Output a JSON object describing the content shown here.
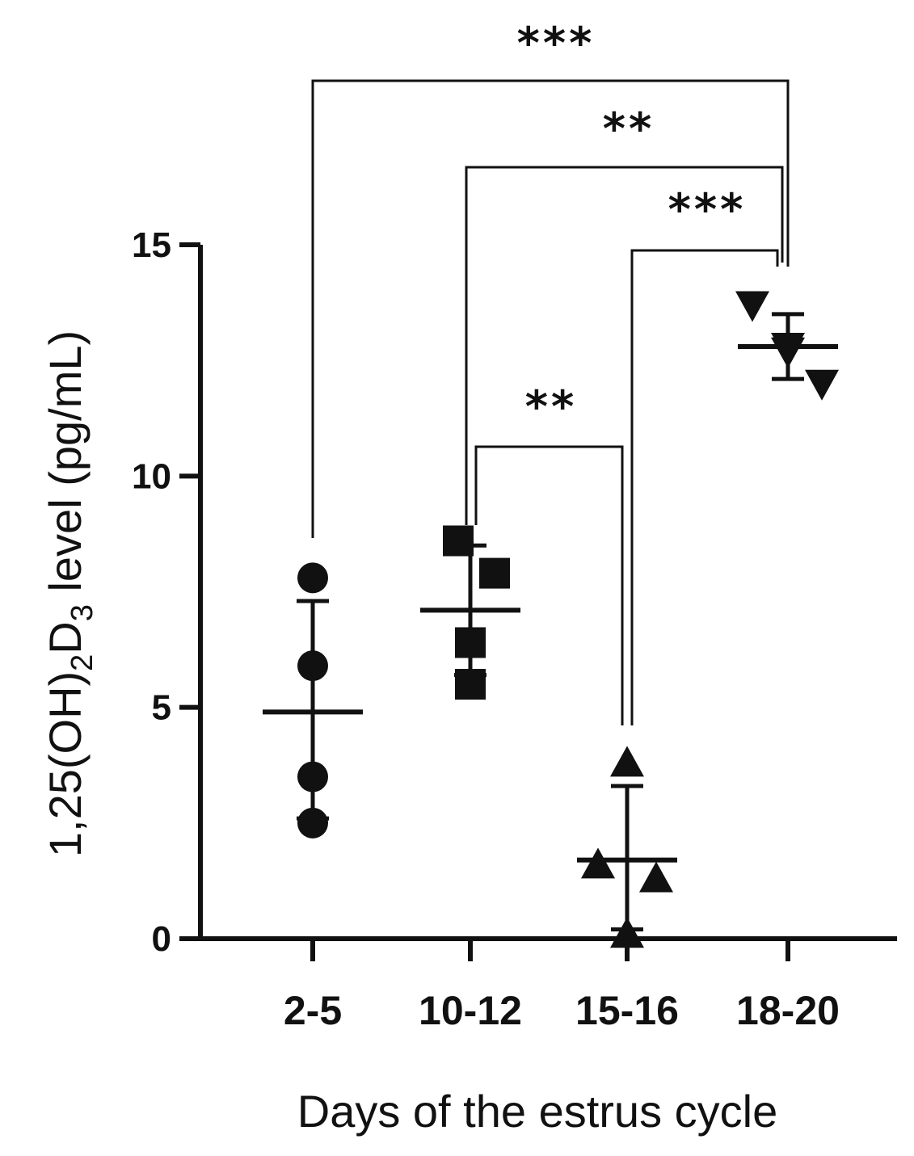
{
  "chart_data": {
    "type": "scatter",
    "categories": [
      "2-5",
      "10-12",
      "15-16",
      "18-20"
    ],
    "ylim": [
      0,
      15
    ],
    "yticks": [
      0,
      5,
      10,
      15
    ],
    "ylabel": {
      "prefix": "1,25(OH)",
      "sub1": "2",
      "mid": "D",
      "sub2": "3",
      "suffix": " level (pg/mL)"
    },
    "xlabel": "Days of the estrus cycle",
    "series": [
      {
        "category": "2-5",
        "marker": "circle",
        "points": [
          7.8,
          5.9,
          3.5,
          2.5
        ],
        "mean": 4.9,
        "sd": [
          2.6,
          7.3
        ]
      },
      {
        "category": "10-12",
        "marker": "square",
        "points": [
          8.6,
          7.9,
          6.4,
          5.5
        ],
        "mean": 7.1,
        "sd": [
          5.7,
          8.5
        ]
      },
      {
        "category": "15-16",
        "marker": "triangle-up",
        "points": [
          3.8,
          1.6,
          1.3,
          0.1
        ],
        "mean": 1.7,
        "sd": [
          0.2,
          3.3
        ]
      },
      {
        "category": "18-20",
        "marker": "triangle-down",
        "points": [
          13.7,
          12.8,
          12.7,
          12.0
        ],
        "mean": 12.8,
        "sd": [
          12.1,
          13.5
        ]
      }
    ],
    "significance": [
      {
        "from": "2-5",
        "to": "18-20",
        "label": "***"
      },
      {
        "from": "10-12",
        "to": "18-20",
        "label": "**"
      },
      {
        "from": "15-16",
        "to": "18-20",
        "label": "***"
      },
      {
        "from": "10-12",
        "to": "15-16",
        "label": "**"
      }
    ],
    "grid": false,
    "legend": "none"
  }
}
